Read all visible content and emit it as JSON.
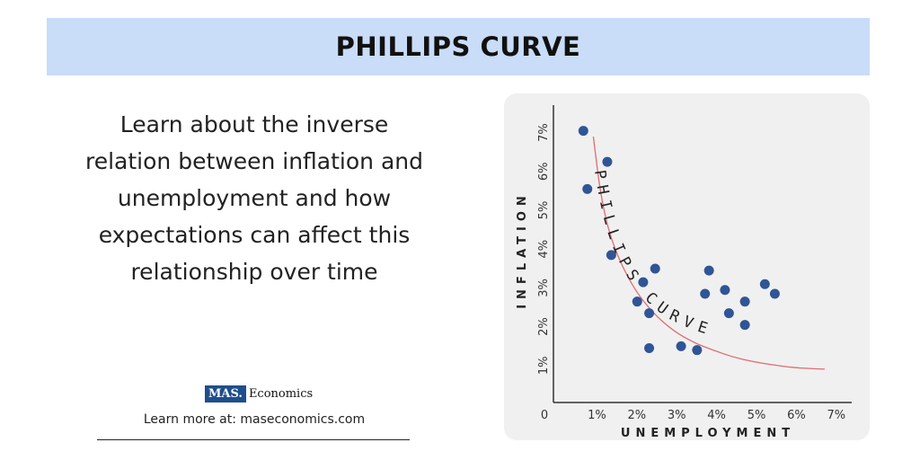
{
  "header": {
    "title": "PHILLIPS CURVE"
  },
  "description": "Learn about the inverse relation between inflation and unemployment and how expectations can affect this relationship over time",
  "logo": {
    "mark": "MAS.",
    "name": "Economics"
  },
  "footer": {
    "learn_more": "Learn more at: maseconomics.com"
  },
  "colors": {
    "banner": "#c9dcf8",
    "points": "#2f5596",
    "curve": "#e06a72",
    "panel": "#f0f0f0"
  },
  "chart_data": {
    "type": "scatter",
    "title": "",
    "xlabel": "UNEMPLOYMENT",
    "ylabel": "INFLATION",
    "origin_label": "0",
    "x_ticks": [
      "1%",
      "2%",
      "3%",
      "4%",
      "5%",
      "6%",
      "7%"
    ],
    "y_ticks": [
      "1%",
      "2%",
      "3%",
      "4%",
      "5%",
      "6%",
      "7%"
    ],
    "xlim": [
      0,
      7.5
    ],
    "ylim": [
      0,
      7.5
    ],
    "grid": false,
    "curve_label": "PHILLIPS CURVE",
    "points": [
      {
        "x": 0.75,
        "y": 7.0
      },
      {
        "x": 0.85,
        "y": 5.5
      },
      {
        "x": 1.35,
        "y": 6.2
      },
      {
        "x": 1.45,
        "y": 3.8
      },
      {
        "x": 2.1,
        "y": 2.6
      },
      {
        "x": 2.25,
        "y": 3.1
      },
      {
        "x": 2.4,
        "y": 2.3
      },
      {
        "x": 2.4,
        "y": 1.4
      },
      {
        "x": 2.55,
        "y": 3.45
      },
      {
        "x": 3.2,
        "y": 1.45
      },
      {
        "x": 3.6,
        "y": 1.35
      },
      {
        "x": 3.8,
        "y": 2.8
      },
      {
        "x": 3.9,
        "y": 3.4
      },
      {
        "x": 4.3,
        "y": 2.9
      },
      {
        "x": 4.4,
        "y": 2.3
      },
      {
        "x": 4.8,
        "y": 2.6
      },
      {
        "x": 4.8,
        "y": 2.0
      },
      {
        "x": 5.3,
        "y": 3.05
      },
      {
        "x": 5.55,
        "y": 2.8
      }
    ],
    "curve": [
      {
        "x": 1.0,
        "y": 6.85
      },
      {
        "x": 1.2,
        "y": 5.2
      },
      {
        "x": 1.5,
        "y": 4.0
      },
      {
        "x": 2.0,
        "y": 2.95
      },
      {
        "x": 2.5,
        "y": 2.3
      },
      {
        "x": 3.0,
        "y": 1.85
      },
      {
        "x": 3.5,
        "y": 1.55
      },
      {
        "x": 4.0,
        "y": 1.35
      },
      {
        "x": 4.5,
        "y": 1.17
      },
      {
        "x": 5.0,
        "y": 1.05
      },
      {
        "x": 5.5,
        "y": 0.97
      },
      {
        "x": 6.0,
        "y": 0.9
      },
      {
        "x": 6.5,
        "y": 0.87
      },
      {
        "x": 6.8,
        "y": 0.86
      }
    ]
  }
}
